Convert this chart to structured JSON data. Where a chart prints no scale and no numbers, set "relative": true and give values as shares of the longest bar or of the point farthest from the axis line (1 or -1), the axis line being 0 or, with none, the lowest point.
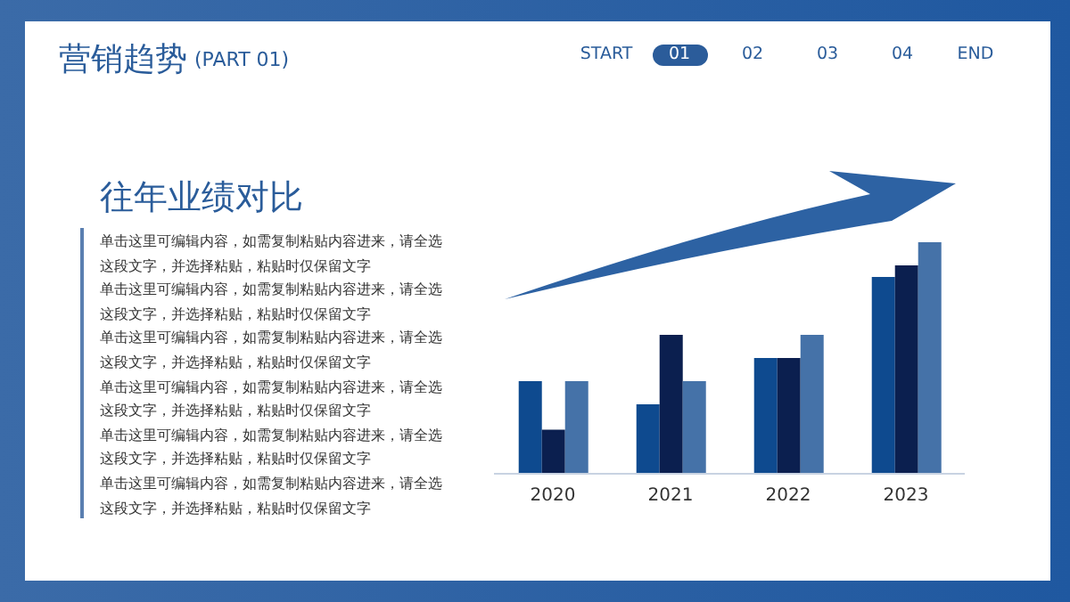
{
  "chart_data": {
    "type": "bar",
    "title": "营销趋势",
    "subtitle": "(PART 01)",
    "relative": true,
    "categories": [
      "2020",
      "2021",
      "2022",
      "2023"
    ],
    "series": [
      {
        "color": "#0e4a8f",
        "values": [
          0.4,
          0.3,
          0.5,
          0.85
        ]
      },
      {
        "color": "#0b1f4f",
        "values": [
          0.19,
          0.6,
          0.5,
          0.9
        ]
      },
      {
        "color": "#4572a8",
        "values": [
          0.4,
          0.4,
          0.6,
          1
        ]
      }
    ],
    "annotations": [
      "START",
      "01",
      "02",
      "03",
      "04",
      "END",
      "往年业绩对比",
      "单击这里可编辑内容，如需复制粘贴内容进来，请全选",
      "这段文字，并选择粘贴，粘贴时仅保留文字",
      "单击这里可编辑内容，如需复制粘贴内容进来，请全选",
      "这段文字，并选择粘贴，粘贴时仅保留文字",
      "单击这里可编辑内容，如需复制粘贴内容进来，请全选",
      "这段文字，并选择粘贴，粘贴时仅保留文字",
      "单击这里可编辑内容，如需复制粘贴内容进来，请全选",
      "这段文字，并选择粘贴，粘贴时仅保留文字",
      "单击这里可编辑内容，如需复制粘贴内容进来，请全选",
      "这段文字，并选择粘贴，粘贴时仅保留文字",
      "单击这里可编辑内容，如需复制粘贴内容进来，请全选",
      "这段文字，并选择粘贴，粘贴时仅保留文字"
    ]
  }
}
